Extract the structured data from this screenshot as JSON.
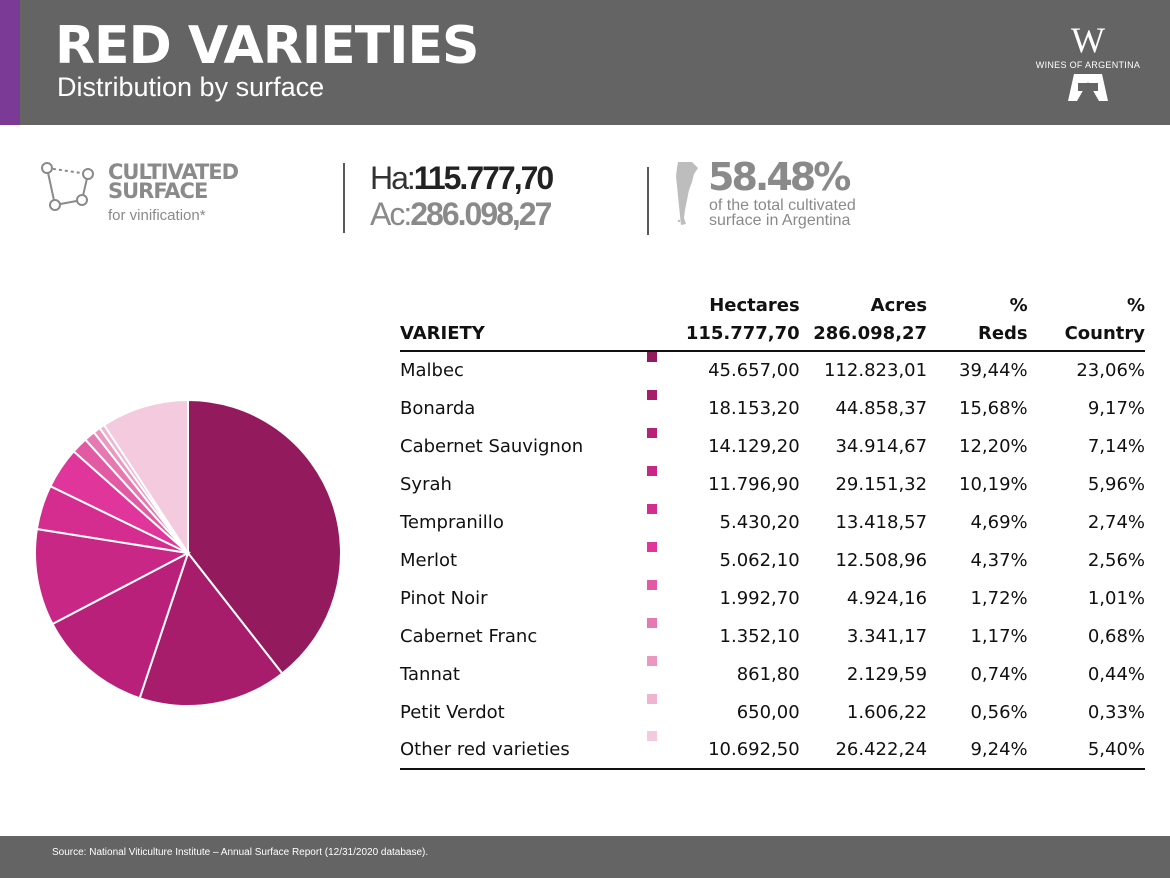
{
  "header": {
    "title": "RED VARIETIES",
    "subtitle": "Distribution by surface",
    "logo_text": "WINES OF ARGENTINA"
  },
  "stats": {
    "cultivated_line1": "CULTIVATED",
    "cultivated_line2": "SURFACE",
    "cultivated_sub": "for vinification*",
    "ha_label": "Ha:",
    "ha_value": "115.777,70",
    "ac_label": "Ac:",
    "ac_value": "286.098,27",
    "percent": "58.48%",
    "percent_sub_line1": "of the total cultivated",
    "percent_sub_line2": "surface in Argentina"
  },
  "table": {
    "headers": {
      "variety": "VARIETY",
      "hectares_top": "Hectares",
      "hectares_total": "115.777,70",
      "acres_top": "Acres",
      "acres_total": "286.098,27",
      "reds_top": "%",
      "reds_bottom": "Reds",
      "country_top": "%",
      "country_bottom": "Country"
    },
    "rows": [
      {
        "variety": "Malbec",
        "hectares": "45.657,00",
        "acres": "112.823,01",
        "reds": "39,44%",
        "country": "23,06%",
        "color": "#931a5c"
      },
      {
        "variety": "Bonarda",
        "hectares": "18.153,20",
        "acres": "44.858,37",
        "reds": "15,68%",
        "country": "9,17%",
        "color": "#a81c6c"
      },
      {
        "variety": "Cabernet Sauvignon",
        "hectares": "14.129,20",
        "acres": "34.914,67",
        "reds": "12,20%",
        "country": "7,14%",
        "color": "#b8207a"
      },
      {
        "variety": "Syrah",
        "hectares": "11.796,90",
        "acres": "29.151,32",
        "reds": "10,19%",
        "country": "5,96%",
        "color": "#c92786"
      },
      {
        "variety": "Tempranillo",
        "hectares": "5.430,20",
        "acres": "13.418,57",
        "reds": "4,69%",
        "country": "2,74%",
        "color": "#d52c8f"
      },
      {
        "variety": "Merlot",
        "hectares": "5.062,10",
        "acres": "12.508,96",
        "reds": "4,37%",
        "country": "2,56%",
        "color": "#e0359a"
      },
      {
        "variety": "Pinot Noir",
        "hectares": "1.992,70",
        "acres": "4.924,16",
        "reds": "1,72%",
        "country": "1,01%",
        "color": "#e35aa4"
      },
      {
        "variety": "Cabernet Franc",
        "hectares": "1.352,10",
        "acres": "3.341,17",
        "reds": "1,17%",
        "country": "0,68%",
        "color": "#e679b2"
      },
      {
        "variety": "Tannat",
        "hectares": "861,80",
        "acres": "2.129,59",
        "reds": "0,74%",
        "country": "0,44%",
        "color": "#ec97c0"
      },
      {
        "variety": "Petit Verdot",
        "hectares": "650,00",
        "acres": "1.606,22",
        "reds": "0,56%",
        "country": "0,33%",
        "color": "#f0b3d0"
      },
      {
        "variety": "Other red varieties",
        "hectares": "10.692,50",
        "acres": "26.422,24",
        "reds": "9,24%",
        "country": "5,40%",
        "color": "#f4cade"
      }
    ]
  },
  "chart_data": {
    "type": "pie",
    "categories": [
      "Malbec",
      "Bonarda",
      "Cabernet Sauvignon",
      "Syrah",
      "Tempranillo",
      "Merlot",
      "Pinot Noir",
      "Cabernet Franc",
      "Tannat",
      "Petit Verdot",
      "Other red varieties"
    ],
    "values": [
      45657.0,
      18153.2,
      14129.2,
      11796.9,
      5430.2,
      5062.1,
      1992.7,
      1352.1,
      861.8,
      650.0,
      10692.5
    ],
    "colors": [
      "#931a5c",
      "#a81c6c",
      "#b8207a",
      "#c92786",
      "#d52c8f",
      "#e0359a",
      "#e35aa4",
      "#e679b2",
      "#ec97c0",
      "#f0b3d0",
      "#f4cade"
    ],
    "legend": "none"
  },
  "footer": {
    "source": "Source: National Viticulture Institute – Annual Surface Report (12/31/2020 database)."
  }
}
